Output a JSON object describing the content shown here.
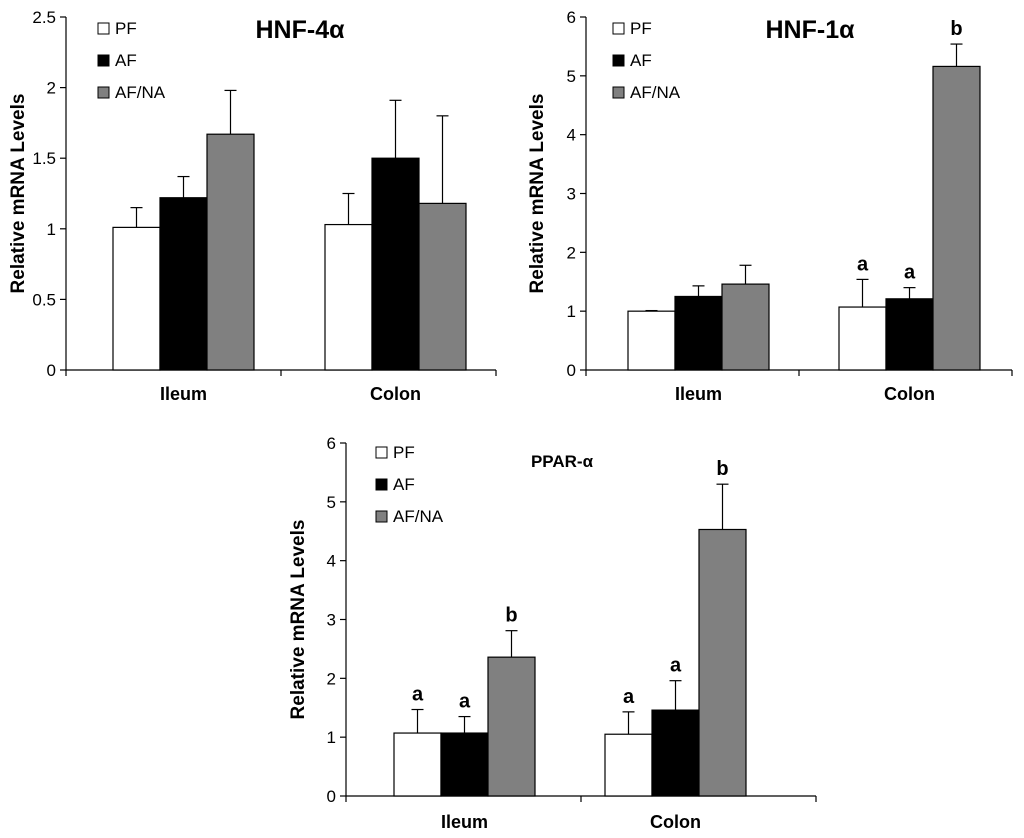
{
  "chart_data": [
    {
      "type": "bar",
      "title": "HNF-4α",
      "ylabel": "Relative mRNA Levels",
      "xlabel": "",
      "ylim": [
        0,
        2.5
      ],
      "yticks": [
        0,
        0.5,
        1,
        1.5,
        2,
        2.5
      ],
      "ytick_labels": [
        "0",
        "0.5",
        "1",
        "1.5",
        "2",
        "2.5"
      ],
      "categories": [
        "Ileum",
        "Colon"
      ],
      "series": [
        {
          "name": "PF",
          "color": "#ffffff",
          "values": [
            1.01,
            1.03
          ],
          "errors": [
            0.14,
            0.22
          ],
          "labels": [
            "",
            ""
          ]
        },
        {
          "name": "AF",
          "color": "#000000",
          "values": [
            1.22,
            1.5
          ],
          "errors": [
            0.15,
            0.41
          ],
          "labels": [
            "",
            ""
          ]
        },
        {
          "name": "AF/NA",
          "color": "#808080",
          "values": [
            1.67,
            1.18
          ],
          "errors": [
            0.31,
            0.62
          ],
          "labels": [
            "",
            ""
          ]
        }
      ],
      "legend_position": "top-left",
      "grid": false
    },
    {
      "type": "bar",
      "title": "HNF-1α",
      "ylabel": "Relative mRNA Levels",
      "xlabel": "",
      "ylim": [
        0,
        6
      ],
      "yticks": [
        0,
        1,
        2,
        3,
        4,
        5,
        6
      ],
      "ytick_labels": [
        "0",
        "1",
        "2",
        "3",
        "4",
        "5",
        "6"
      ],
      "categories": [
        "Ileum",
        "Colon"
      ],
      "series": [
        {
          "name": "PF",
          "color": "#ffffff",
          "values": [
            1.0,
            1.07
          ],
          "errors": [
            0.01,
            0.47
          ],
          "labels": [
            "",
            "a"
          ]
        },
        {
          "name": "AF",
          "color": "#000000",
          "values": [
            1.25,
            1.21
          ],
          "errors": [
            0.18,
            0.19
          ],
          "labels": [
            "",
            "a"
          ]
        },
        {
          "name": "AF/NA",
          "color": "#808080",
          "values": [
            1.46,
            5.16
          ],
          "errors": [
            0.32,
            0.38
          ],
          "labels": [
            "",
            "b"
          ]
        }
      ],
      "legend_position": "top-left",
      "grid": false
    },
    {
      "type": "bar",
      "title": "PPAR-α",
      "ylabel": "Relative mRNA Levels",
      "xlabel": "",
      "ylim": [
        0,
        6
      ],
      "yticks": [
        0,
        1,
        2,
        3,
        4,
        5,
        6
      ],
      "ytick_labels": [
        "0",
        "1",
        "2",
        "3",
        "4",
        "5",
        "6"
      ],
      "categories": [
        "Ileum",
        "Colon"
      ],
      "series": [
        {
          "name": "PF",
          "color": "#ffffff",
          "values": [
            1.07,
            1.05
          ],
          "errors": [
            0.4,
            0.38
          ],
          "labels": [
            "a",
            "a"
          ]
        },
        {
          "name": "AF",
          "color": "#000000",
          "values": [
            1.07,
            1.46
          ],
          "errors": [
            0.28,
            0.5
          ],
          "labels": [
            "a",
            "a"
          ]
        },
        {
          "name": "AF/NA",
          "color": "#808080",
          "values": [
            2.36,
            4.53
          ],
          "errors": [
            0.45,
            0.77
          ],
          "labels": [
            "b",
            "b"
          ]
        }
      ],
      "legend_position": "top-left",
      "grid": false
    }
  ]
}
